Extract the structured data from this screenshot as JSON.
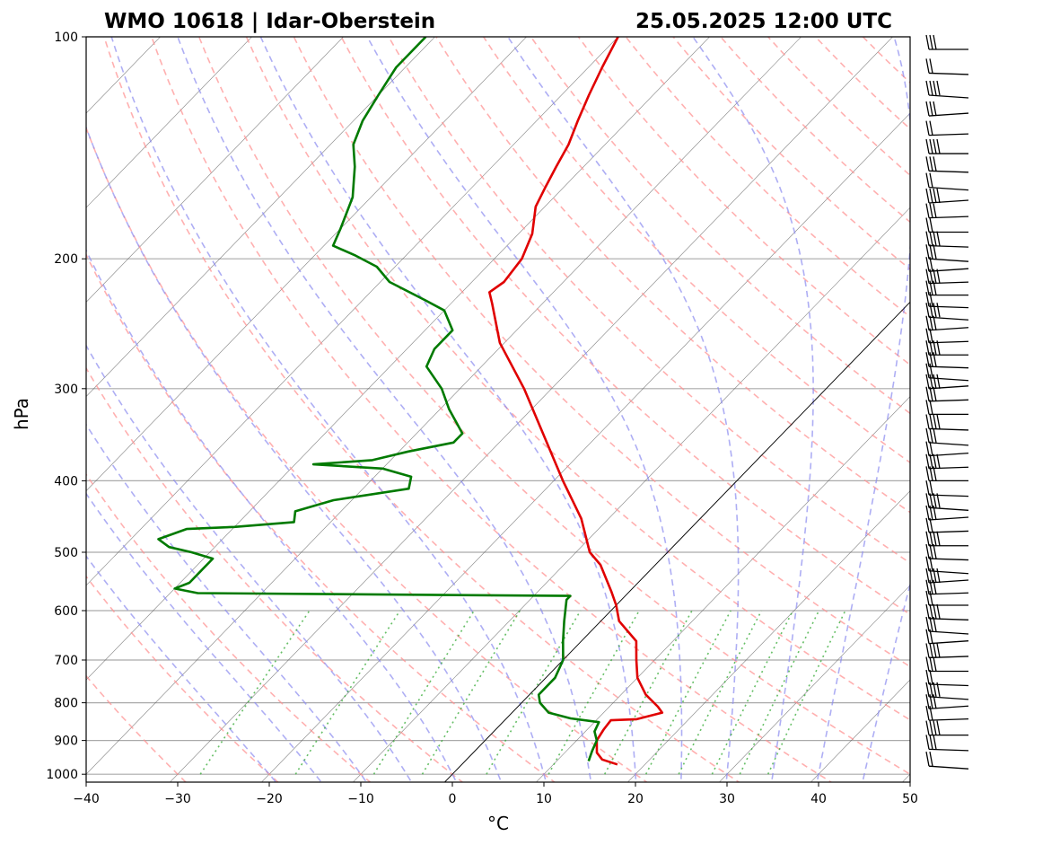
{
  "title_left": "WMO 10618 | Idar-Oberstein",
  "title_right": "25.05.2025 12:00 UTC",
  "colors": {
    "temperature": "#e00000",
    "dewpoint": "#007a00",
    "dry_adiabat": "#ff8f8f",
    "moist_adiabat": "#8c8cf0",
    "mixing_ratio": "#33aa33",
    "isotherm": "#555555",
    "grid": "#aaaaaa"
  },
  "chart_data": {
    "type": "line",
    "chart_kind": "skew-T log-P diagram",
    "xlabel": "°C",
    "ylabel": "hPa",
    "xlim": [
      -40,
      50
    ],
    "ylim": [
      1025,
      100
    ],
    "y_scale": "log",
    "x_ticks": [
      "−40",
      "−30",
      "−20",
      "−10",
      "0",
      "10",
      "20",
      "30",
      "40",
      "50"
    ],
    "y_ticks": [
      "100",
      "200",
      "300",
      "400",
      "500",
      "600",
      "700",
      "800",
      "900",
      "1000"
    ],
    "grid": true,
    "temperature_profile": [
      [
        970,
        17.0
      ],
      [
        955,
        14.8
      ],
      [
        935,
        13.5
      ],
      [
        900,
        12.2
      ],
      [
        870,
        11.8
      ],
      [
        845,
        11.6
      ],
      [
        842,
        14.3
      ],
      [
        825,
        16.4
      ],
      [
        810,
        15.3
      ],
      [
        780,
        12.7
      ],
      [
        740,
        10.0
      ],
      [
        700,
        8.0
      ],
      [
        660,
        6.0
      ],
      [
        620,
        2.0
      ],
      [
        590,
        0.0
      ],
      [
        565,
        -2.0
      ],
      [
        520,
        -6.0
      ],
      [
        500,
        -8.5
      ],
      [
        450,
        -13.0
      ],
      [
        400,
        -19.0
      ],
      [
        350,
        -25.5
      ],
      [
        300,
        -33.0
      ],
      [
        260,
        -40.5
      ],
      [
        230,
        -45.5
      ],
      [
        222,
        -47.0
      ],
      [
        215,
        -46.5
      ],
      [
        200,
        -47.0
      ],
      [
        185,
        -48.5
      ],
      [
        170,
        -51.0
      ],
      [
        160,
        -52.0
      ],
      [
        150,
        -53.0
      ],
      [
        140,
        -54.0
      ],
      [
        130,
        -55.5
      ],
      [
        120,
        -57.0
      ],
      [
        110,
        -58.5
      ],
      [
        100,
        -60.0
      ]
    ],
    "dewpoint_profile": [
      [
        960,
        13.5
      ],
      [
        930,
        12.8
      ],
      [
        900,
        12.2
      ],
      [
        875,
        11.0
      ],
      [
        850,
        10.5
      ],
      [
        840,
        7.0
      ],
      [
        825,
        4.0
      ],
      [
        800,
        2.0
      ],
      [
        780,
        1.0
      ],
      [
        740,
        1.0
      ],
      [
        700,
        0.0
      ],
      [
        660,
        -2.0
      ],
      [
        620,
        -4.0
      ],
      [
        580,
        -6.0
      ],
      [
        573,
        -6.0
      ],
      [
        568,
        -47.0
      ],
      [
        560,
        -50.0
      ],
      [
        550,
        -49.0
      ],
      [
        530,
        -49.0
      ],
      [
        510,
        -49.0
      ],
      [
        500,
        -52.0
      ],
      [
        492,
        -55.0
      ],
      [
        480,
        -57.0
      ],
      [
        465,
        -55.0
      ],
      [
        462,
        -50.0
      ],
      [
        455,
        -44.0
      ],
      [
        440,
        -45.0
      ],
      [
        425,
        -42.0
      ],
      [
        410,
        -35.0
      ],
      [
        395,
        -36.0
      ],
      [
        385,
        -40.0
      ],
      [
        380,
        -48.0
      ],
      [
        375,
        -42.0
      ],
      [
        365,
        -39.0
      ],
      [
        355,
        -35.0
      ],
      [
        345,
        -35.0
      ],
      [
        320,
        -39.0
      ],
      [
        300,
        -42.0
      ],
      [
        280,
        -46.0
      ],
      [
        265,
        -47.0
      ],
      [
        250,
        -47.0
      ],
      [
        235,
        -50.0
      ],
      [
        228,
        -53.0
      ],
      [
        215,
        -59.0
      ],
      [
        205,
        -62.0
      ],
      [
        198,
        -65.5
      ],
      [
        192,
        -69.0
      ],
      [
        182,
        -70.0
      ],
      [
        165,
        -72.0
      ],
      [
        150,
        -75.0
      ],
      [
        140,
        -77.5
      ],
      [
        130,
        -79.0
      ],
      [
        120,
        -80.0
      ],
      [
        110,
        -81.0
      ],
      [
        100,
        -81.0
      ]
    ],
    "wind_barbs_pressure_hpa": [
      975,
      925,
      885,
      845,
      815,
      785,
      755,
      725,
      695,
      665,
      640,
      615,
      590,
      570,
      550,
      530,
      510,
      490,
      470,
      452,
      435,
      418,
      400,
      385,
      370,
      355,
      340,
      325,
      312,
      300,
      290,
      280,
      270,
      260,
      250,
      240,
      232,
      224,
      216,
      208,
      200,
      192,
      184,
      176,
      168,
      160,
      152,
      144,
      136,
      128,
      120,
      112,
      104
    ]
  }
}
